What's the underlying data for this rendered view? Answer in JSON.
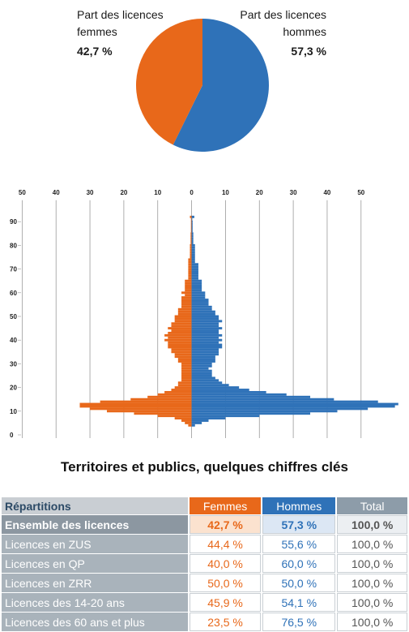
{
  "chart_data": [
    {
      "type": "pie",
      "categories": [
        "Part des licences femmes",
        "Part des licences hommes"
      ],
      "values": [
        42.7,
        57.3
      ],
      "value_labels": [
        "42,7 %",
        "57,3 %"
      ],
      "colors": [
        "#e8681a",
        "#2f72b8"
      ]
    },
    {
      "type": "pyramid",
      "y": [
        4,
        5,
        6,
        7,
        8,
        9,
        10,
        11,
        12,
        13,
        14,
        15,
        16,
        17,
        18,
        19,
        20,
        21,
        22,
        23,
        24,
        25,
        26,
        27,
        28,
        29,
        30,
        31,
        32,
        33,
        34,
        35,
        36,
        37,
        38,
        39,
        40,
        41,
        42,
        43,
        44,
        45,
        46,
        47,
        48,
        49,
        50,
        51,
        52,
        53,
        54,
        55,
        56,
        57,
        58,
        59,
        60,
        61,
        62,
        63,
        64,
        65,
        66,
        67,
        68,
        69,
        70,
        71,
        72,
        73,
        74,
        75,
        76,
        77,
        78,
        79,
        80,
        81,
        82,
        83,
        84,
        85,
        86,
        87,
        88,
        89,
        90,
        91,
        92
      ],
      "series": [
        {
          "color": "#e8681a",
          "values": [
            1,
            2,
            3,
            5,
            10,
            17,
            25,
            30,
            33,
            33,
            27,
            18,
            13,
            10,
            8,
            6,
            5,
            4,
            4,
            3,
            3,
            3,
            3,
            3,
            3,
            3,
            3,
            4,
            4,
            5,
            5,
            6,
            6,
            7,
            7,
            7,
            8,
            7,
            8,
            7,
            6,
            7,
            6,
            6,
            5,
            5,
            5,
            4,
            4,
            4,
            3,
            3,
            3,
            3,
            3,
            2,
            3,
            2,
            2,
            2,
            2,
            2,
            1,
            1,
            1,
            1,
            1,
            1,
            1,
            1,
            1,
            0.5,
            0.5,
            0.5,
            0.5,
            0.5,
            0.5,
            0.3,
            0.3,
            0.3,
            0.3,
            0.3,
            0.2,
            0.2,
            0.2,
            0.2,
            0.2,
            0.2,
            0.5
          ]
        },
        {
          "color": "#2f72b8",
          "values": [
            1,
            3,
            5,
            10,
            20,
            35,
            43,
            52,
            60,
            61,
            55,
            42,
            35,
            28,
            22,
            17,
            14,
            11,
            9,
            8,
            7,
            6,
            6,
            6,
            5,
            6,
            6,
            7,
            7,
            7,
            8,
            8,
            8,
            9,
            9,
            8,
            9,
            8,
            9,
            8,
            8,
            9,
            8,
            8,
            9,
            8,
            8,
            7,
            7,
            6,
            6,
            5,
            5,
            5,
            4,
            4,
            4,
            3,
            3,
            3,
            3,
            3,
            2,
            2,
            2,
            2,
            2,
            2,
            2,
            1,
            1,
            1,
            1,
            1,
            1,
            1,
            1,
            0.5,
            0.5,
            0.5,
            0.5,
            0.5,
            0.3,
            0.3,
            0.3,
            0.3,
            0.3,
            0.2,
            0.8
          ]
        }
      ],
      "xlim": [
        -52,
        62
      ],
      "xticks": [
        {
          "value": -50,
          "label": "50"
        },
        {
          "value": -40,
          "label": "40"
        },
        {
          "value": -30,
          "label": "30"
        },
        {
          "value": -20,
          "label": "20"
        },
        {
          "value": -10,
          "label": "10"
        },
        0,
        10,
        20,
        30,
        40,
        50
      ],
      "ylim": [
        0,
        97
      ],
      "yticks": [
        0,
        10,
        20,
        30,
        40,
        50,
        60,
        70,
        80,
        90
      ],
      "grid": true
    }
  ],
  "heading": "Territoires et publics, quelques chiffres clés",
  "table": {
    "header": [
      "Répartitions",
      "Femmes",
      "Hommes",
      "Total"
    ],
    "header_colors": [
      "#c9ced3",
      "#e8681a",
      "#2f72b8",
      "#8d9ca9"
    ],
    "rows": [
      [
        "Ensemble des licences",
        "42,7 %",
        "57,3 %",
        "100,0 %"
      ],
      [
        "Licences en ZUS",
        "44,4 %",
        "55,6 %",
        "100,0 %"
      ],
      [
        "Licences en QP",
        "40,0 %",
        "60,0 %",
        "100,0 %"
      ],
      [
        "Licences en ZRR",
        "50,0 %",
        "50,0 %",
        "100,0 %"
      ],
      [
        "Licences des 14-20 ans",
        "45,9 %",
        "54,1 %",
        "100,0 %"
      ],
      [
        "Licences des 60 ans et plus",
        "23,5 %",
        "76,5 %",
        "100,0 %"
      ]
    ]
  }
}
